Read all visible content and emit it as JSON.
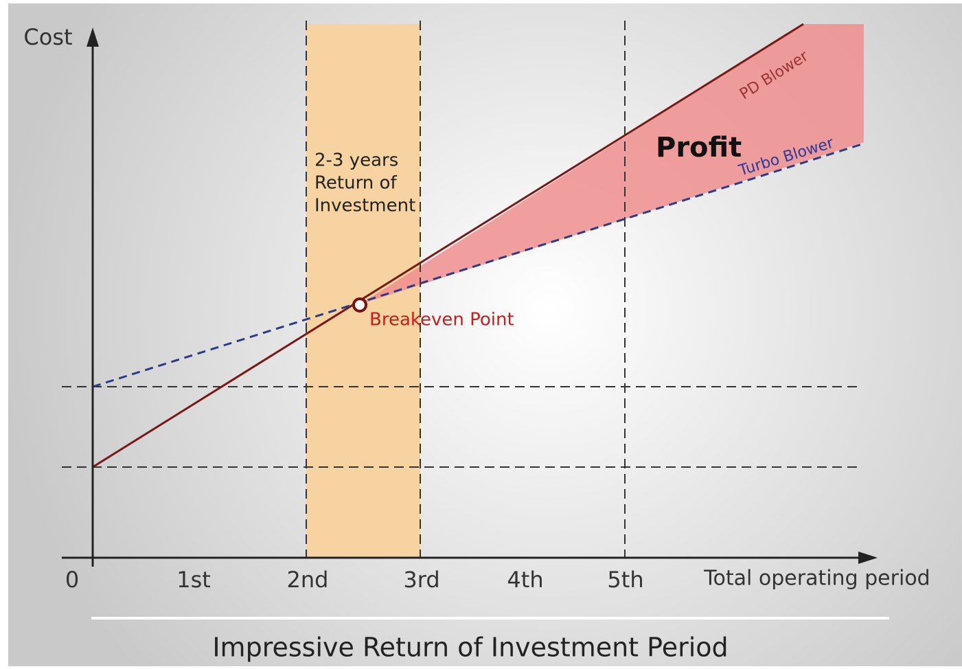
{
  "y_axis_label": "Cost",
  "x_axis_label": "Total operating period",
  "x_ticks": [
    "0",
    "1st",
    "2nd",
    "3rd",
    "4th",
    "5th"
  ],
  "roi_note": [
    "2-3 years",
    "Return of",
    "Investment"
  ],
  "series_labels": {
    "pd": "PD Blower",
    "turbo": "Turbo Blower"
  },
  "profit_label": "Profit",
  "breakeven_label": "Breakeven Point",
  "title": "Impressive Return of Investment Period"
}
